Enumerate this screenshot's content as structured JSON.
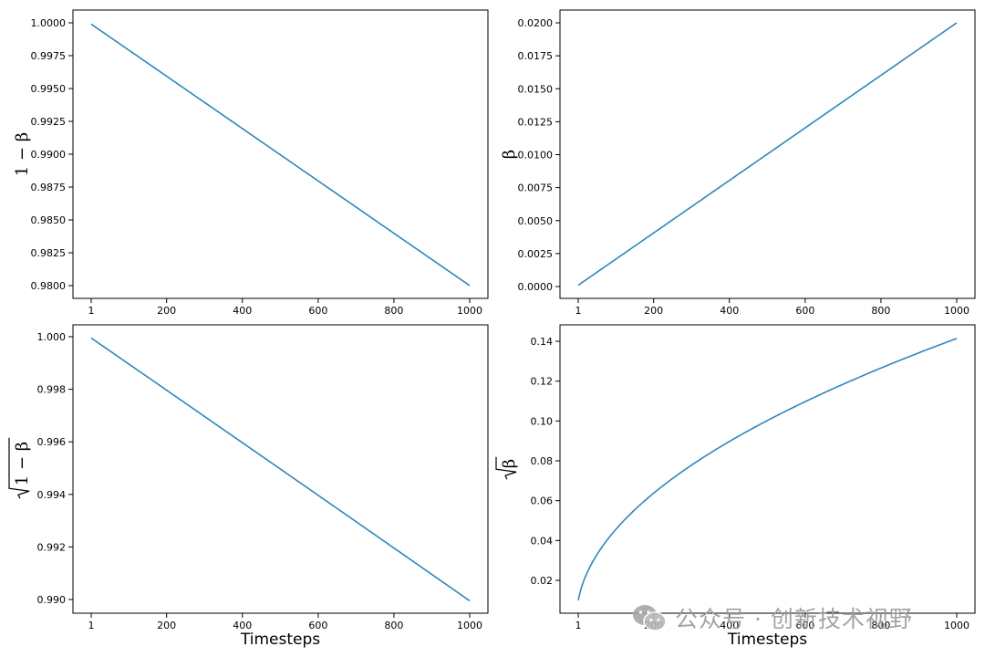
{
  "chart_data": [
    {
      "type": "line",
      "ylabel": "1 − β",
      "xlabel": "",
      "xlim": [
        1,
        1000
      ],
      "ylim": [
        0.98,
        1.0
      ],
      "xticks": [
        1,
        200,
        400,
        600,
        800,
        1000
      ],
      "yticks": [
        0.98,
        0.9825,
        0.985,
        0.9875,
        0.99,
        0.9925,
        0.995,
        0.9975,
        1.0
      ],
      "ytick_labels": [
        "0.9800",
        "0.9825",
        "0.9850",
        "0.9875",
        "0.9900",
        "0.9925",
        "0.9950",
        "0.9975",
        "1.0000"
      ],
      "series": [
        {
          "x": [
            1,
            1000
          ],
          "y": [
            0.9999,
            0.98
          ]
        }
      ],
      "color": "#2e86c1",
      "grid": false
    },
    {
      "type": "line",
      "ylabel": "β",
      "xlabel": "",
      "xlim": [
        1,
        1000
      ],
      "ylim": [
        0.0,
        0.02
      ],
      "xticks": [
        1,
        200,
        400,
        600,
        800,
        1000
      ],
      "yticks": [
        0.0,
        0.0025,
        0.005,
        0.0075,
        0.01,
        0.0125,
        0.015,
        0.0175,
        0.02
      ],
      "ytick_labels": [
        "0.0000",
        "0.0025",
        "0.0050",
        "0.0075",
        "0.0100",
        "0.0125",
        "0.0150",
        "0.0175",
        "0.0200"
      ],
      "series": [
        {
          "x": [
            1,
            1000
          ],
          "y": [
            0.0001,
            0.02
          ]
        }
      ],
      "color": "#2e86c1",
      "grid": false
    },
    {
      "type": "line",
      "ylabel": "√(1 − β)",
      "xlabel": "Timesteps",
      "xlim": [
        1,
        1000
      ],
      "ylim": [
        0.99,
        1.0
      ],
      "xticks": [
        1,
        200,
        400,
        600,
        800,
        1000
      ],
      "yticks": [
        0.99,
        0.992,
        0.994,
        0.996,
        0.998,
        1.0
      ],
      "ytick_labels": [
        "0.990",
        "0.992",
        "0.994",
        "0.996",
        "0.998",
        "1.000"
      ],
      "series": [
        {
          "x": [
            1,
            1000
          ],
          "y": [
            0.99995,
            0.98995
          ],
          "formula": "sqrt_one_minus_beta"
        }
      ],
      "color": "#2e86c1",
      "grid": false
    },
    {
      "type": "line",
      "ylabel": "√β",
      "xlabel": "Timesteps",
      "xlim": [
        1,
        1000
      ],
      "ylim": [
        0.02,
        0.14
      ],
      "xticks": [
        1,
        200,
        400,
        600,
        800,
        1000
      ],
      "yticks": [
        0.02,
        0.04,
        0.06,
        0.08,
        0.1,
        0.12,
        0.14
      ],
      "ytick_labels": [
        "0.02",
        "0.04",
        "0.06",
        "0.08",
        "0.10",
        "0.12",
        "0.14"
      ],
      "series": [
        {
          "x": [
            1,
            1000
          ],
          "y": [
            0.01,
            0.1414
          ],
          "formula": "sqrt_beta"
        }
      ],
      "color": "#2e86c1",
      "grid": false
    }
  ],
  "watermark": {
    "icon": "wechat-icon",
    "text": "公众号 · 创新技术视野"
  }
}
